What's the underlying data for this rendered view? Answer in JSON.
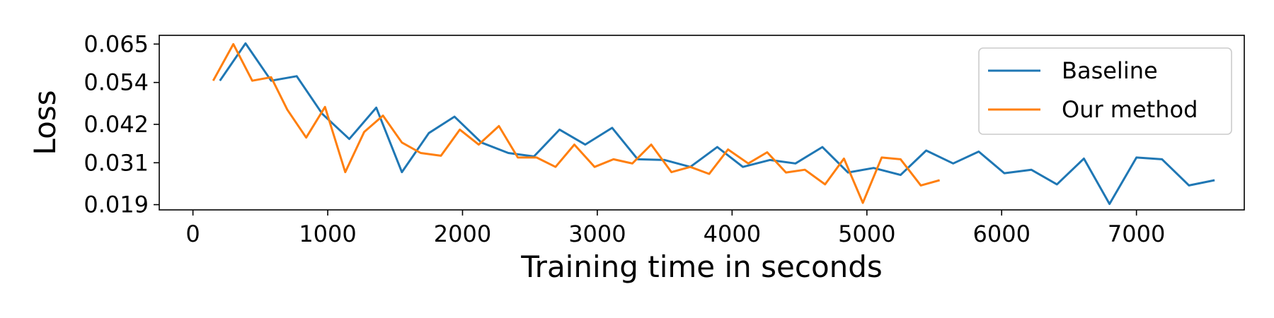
{
  "chart_data": {
    "type": "line",
    "xlabel": "Training time in seconds",
    "ylabel": "Loss",
    "xlim": [
      -250,
      7800
    ],
    "ylim": [
      0.0175,
      0.0675
    ],
    "xticks": [
      0,
      1000,
      2000,
      3000,
      4000,
      5000,
      6000,
      7000
    ],
    "yticks": [
      0.019,
      0.031,
      0.042,
      0.054,
      0.065
    ],
    "ytick_labels": [
      "0.019",
      "0.031",
      "0.042",
      "0.054",
      "0.065"
    ],
    "grid": false,
    "legend_position": "top-right",
    "series": [
      {
        "name": "Baseline",
        "color": "#1f77b4",
        "x": [
          200,
          390,
          580,
          770,
          960,
          1160,
          1360,
          1550,
          1750,
          1940,
          2140,
          2340,
          2530,
          2720,
          2910,
          3110,
          3300,
          3500,
          3690,
          3890,
          4080,
          4280,
          4470,
          4670,
          4860,
          5050,
          5250,
          5440,
          5640,
          5830,
          6020,
          6220,
          6410,
          6610,
          6800,
          7000,
          7190,
          7390,
          7580
        ],
        "y": [
          0.0545,
          0.0652,
          0.0545,
          0.0558,
          0.045,
          0.0378,
          0.0468,
          0.0283,
          0.0395,
          0.0442,
          0.0368,
          0.0338,
          0.0328,
          0.0405,
          0.0362,
          0.041,
          0.032,
          0.0318,
          0.0298,
          0.0355,
          0.0298,
          0.0318,
          0.0308,
          0.0355,
          0.0282,
          0.0295,
          0.0275,
          0.0345,
          0.0308,
          0.0342,
          0.028,
          0.029,
          0.0248,
          0.0322,
          0.0192,
          0.0325,
          0.032,
          0.0245,
          0.026
        ]
      },
      {
        "name": "Our method",
        "color": "#ff7f0e",
        "x": [
          150,
          300,
          440,
          580,
          700,
          840,
          980,
          1130,
          1270,
          1410,
          1550,
          1690,
          1840,
          1980,
          2120,
          2270,
          2410,
          2550,
          2690,
          2830,
          2980,
          3120,
          3260,
          3400,
          3550,
          3690,
          3830,
          3970,
          4120,
          4260,
          4400,
          4540,
          4690,
          4830,
          4970,
          5110,
          5250,
          5400,
          5540
        ],
        "y": [
          0.0545,
          0.065,
          0.0545,
          0.0555,
          0.0462,
          0.0382,
          0.047,
          0.0283,
          0.0398,
          0.0445,
          0.0368,
          0.0338,
          0.033,
          0.0405,
          0.0362,
          0.0415,
          0.0325,
          0.0325,
          0.0298,
          0.0362,
          0.0298,
          0.032,
          0.0308,
          0.0362,
          0.0283,
          0.0298,
          0.0278,
          0.0348,
          0.0308,
          0.034,
          0.0282,
          0.029,
          0.0248,
          0.0322,
          0.0195,
          0.0325,
          0.032,
          0.0245,
          0.026
        ]
      }
    ]
  }
}
